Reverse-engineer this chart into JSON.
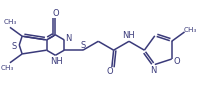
{
  "background": "#ffffff",
  "bond_color": "#3a3a7a",
  "line_width": 1.1,
  "figsize": [
    2.2,
    0.97
  ],
  "dpi": 100,
  "xlim": [
    0,
    220
  ],
  "ylim": [
    0,
    97
  ]
}
